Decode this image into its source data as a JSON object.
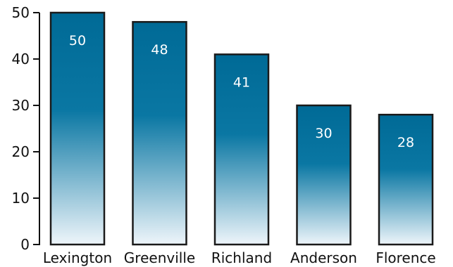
{
  "chart_data": {
    "type": "bar",
    "categories": [
      "Lexington",
      "Greenville",
      "Richland",
      "Anderson",
      "Florence"
    ],
    "values": [
      50,
      48,
      41,
      30,
      28
    ],
    "title": "",
    "xlabel": "",
    "ylabel": "",
    "ylim": [
      0,
      50
    ],
    "yticks": [
      "0",
      "10",
      "20",
      "30",
      "40",
      "50"
    ],
    "data_labels": [
      "50",
      "48",
      "41",
      "30",
      "28"
    ],
    "grid": false,
    "legend": "none",
    "colors": {
      "bar_top": "#006a96",
      "bar_bottom": "#eef5fa",
      "bar_outline": "#1a1a1a",
      "axis": "#111111",
      "value_text": "#ffffff"
    }
  }
}
